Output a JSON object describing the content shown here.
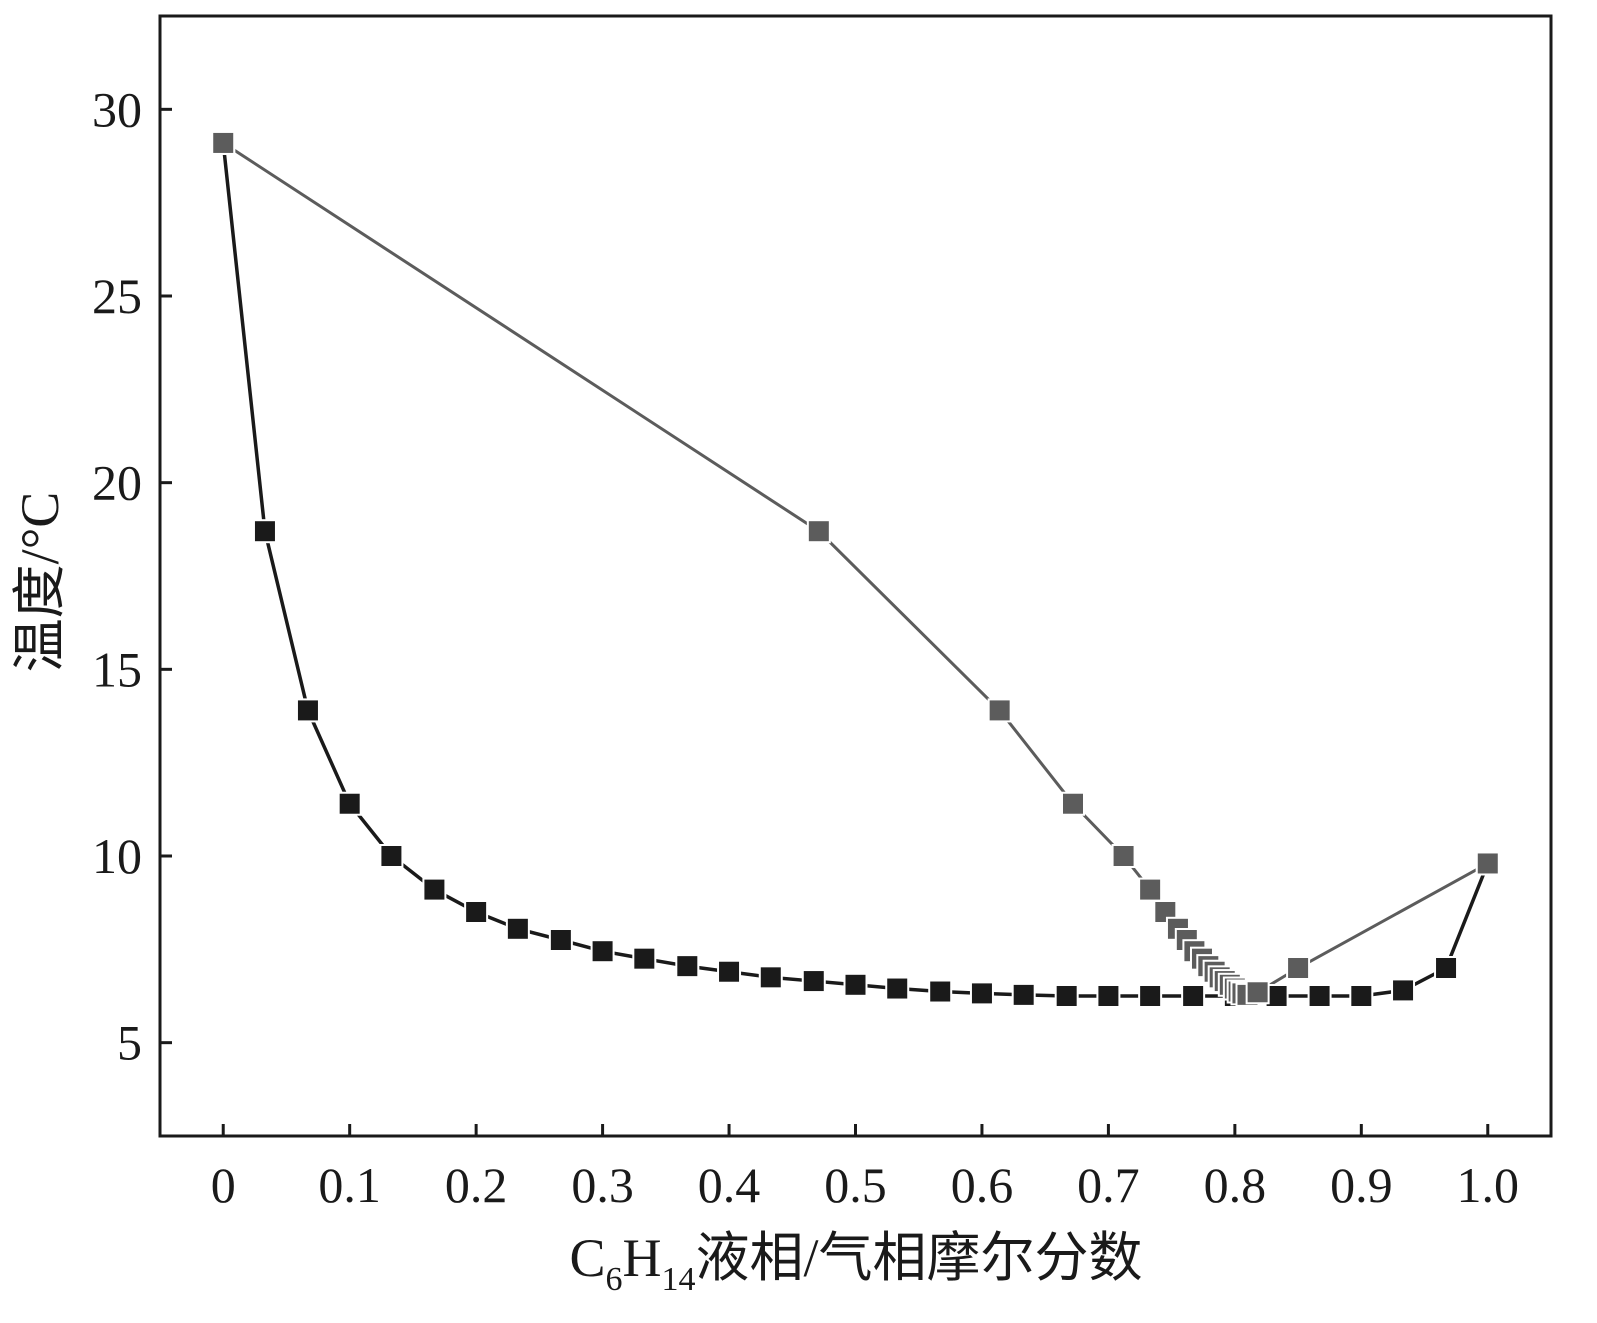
{
  "chart_data": {
    "type": "line",
    "title": "",
    "xlabel": {
      "prefix": "C",
      "sub1": "6",
      "mid": "H",
      "sub2": "14",
      "suffix": "液相/气相摩尔分数"
    },
    "ylabel": "温度/°C",
    "xlim": [
      -0.05,
      1.05
    ],
    "ylim": [
      2.5,
      32.5
    ],
    "xticks": [
      0,
      0.1,
      0.2,
      0.3,
      0.4,
      0.5,
      0.6,
      0.7,
      0.8,
      0.9,
      1.0
    ],
    "xtick_labels": [
      "0",
      "0.1",
      "0.2",
      "0.3",
      "0.4",
      "0.5",
      "0.6",
      "0.7",
      "0.8",
      "0.9",
      "1.0"
    ],
    "yticks": [
      5,
      10,
      15,
      20,
      25,
      30
    ],
    "ytick_labels": [
      "5",
      "10",
      "15",
      "20",
      "25",
      "30"
    ],
    "grid": false,
    "colors": {
      "liquid": "#1a1a1a",
      "vapor": "#5c5c5c",
      "axis": "#1a1a1a"
    },
    "series": [
      {
        "role": "liquid",
        "x": [
          0,
          0.033,
          0.067,
          0.1,
          0.133,
          0.167,
          0.2,
          0.233,
          0.267,
          0.3,
          0.333,
          0.367,
          0.4,
          0.433,
          0.467,
          0.5,
          0.533,
          0.567,
          0.6,
          0.633,
          0.667,
          0.7,
          0.733,
          0.767,
          0.8,
          0.833,
          0.867,
          0.9,
          0.933,
          0.967,
          1.0
        ],
        "y": [
          29.1,
          18.7,
          13.9,
          11.4,
          10.0,
          9.1,
          8.5,
          8.05,
          7.75,
          7.45,
          7.25,
          7.05,
          6.9,
          6.75,
          6.65,
          6.55,
          6.45,
          6.37,
          6.32,
          6.28,
          6.25,
          6.25,
          6.25,
          6.25,
          6.25,
          6.25,
          6.25,
          6.25,
          6.4,
          7.0,
          9.8
        ]
      },
      {
        "role": "vapor",
        "x": [
          0,
          0.471,
          0.614,
          0.672,
          0.712,
          0.733,
          0.745,
          0.755,
          0.762,
          0.768,
          0.774,
          0.779,
          0.784,
          0.788,
          0.792,
          0.796,
          0.8,
          0.803,
          0.806,
          0.81,
          0.818,
          0.85,
          1.0
        ],
        "y": [
          29.1,
          18.7,
          13.9,
          11.4,
          10.0,
          9.1,
          8.5,
          8.05,
          7.75,
          7.45,
          7.25,
          7.05,
          6.9,
          6.75,
          6.65,
          6.55,
          6.45,
          6.37,
          6.32,
          6.28,
          6.35,
          7.0,
          9.8
        ]
      }
    ]
  }
}
